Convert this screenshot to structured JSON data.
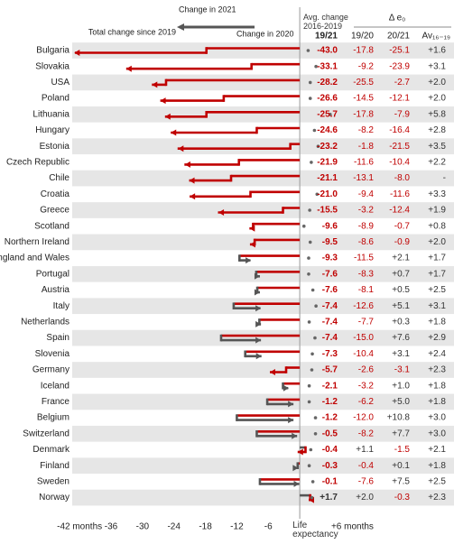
{
  "chart_data": {
    "type": "arrow",
    "legend": {
      "change_2021": "Change in 2021",
      "change_2020": "Change in 2020"
    },
    "columns": {
      "delta": "Δ e₀",
      "total": "19/21",
      "v20": "19/20",
      "v21": "20/21",
      "avg": "Av₁₆₋₁₉"
    },
    "categories": [
      "Bulgaria",
      "Slovakia",
      "USA",
      "Poland",
      "Lithuania",
      "Hungary",
      "Estonia",
      "Czech Republic",
      "Chile",
      "Croatia",
      "Greece",
      "Scotland",
      "Northern Ireland",
      "England and Wales",
      "Portugal",
      "Austria",
      "Italy",
      "Netherlands",
      "Spain",
      "Slovenia",
      "Germany",
      "Iceland",
      "France",
      "Belgium",
      "Switzerland",
      "Denmark",
      "Finland",
      "Sweden",
      "Norway"
    ],
    "series": [
      {
        "name": "Change in 2020",
        "values": [
          -17.8,
          -9.2,
          -25.5,
          -14.5,
          -17.8,
          -8.2,
          -1.8,
          -11.6,
          -13.1,
          -9.4,
          -3.2,
          -8.9,
          -8.6,
          -11.5,
          -8.3,
          -8.1,
          -12.6,
          -7.7,
          -15.0,
          -10.4,
          -2.6,
          -3.2,
          -6.2,
          -12.0,
          -8.2,
          1.1,
          -0.4,
          -7.6,
          2.0
        ],
        "value_labels": [
          "-17.8",
          "-9.2",
          "-25.5",
          "-14.5",
          "-17.8",
          "-8.2",
          "-1.8",
          "-11.6",
          "-13.1",
          "-9.4",
          "-3.2",
          "-8.9",
          "-8.6",
          "-11.5",
          "-8.3",
          "-8.1",
          "-12.6",
          "-7.7",
          "-15.0",
          "-10.4",
          "-2.6",
          "-3.2",
          "-6.2",
          "-12.0",
          "-8.2",
          "+1.1",
          "-0.4",
          "-7.6",
          "+2.0"
        ]
      },
      {
        "name": "Change in 2021",
        "values": [
          -25.1,
          -23.9,
          -2.7,
          -12.1,
          -7.9,
          -16.4,
          -21.5,
          -10.4,
          -8.0,
          -11.6,
          -12.4,
          -0.7,
          -0.9,
          2.1,
          0.7,
          0.5,
          5.1,
          0.3,
          7.6,
          3.1,
          -3.1,
          1.0,
          5.0,
          10.8,
          7.7,
          -1.5,
          0.1,
          7.5,
          -0.3
        ],
        "value_labels": [
          "-25.1",
          "-23.9",
          "-2.7",
          "-12.1",
          "-7.9",
          "-16.4",
          "-21.5",
          "-10.4",
          "-8.0",
          "-11.6",
          "-12.4",
          "-0.7",
          "-0.9",
          "+2.1",
          "+0.7",
          "+0.5",
          "+5.1",
          "+0.3",
          "+7.6",
          "+3.1",
          "-3.1",
          "+1.0",
          "+5.0",
          "+10.8",
          "+7.7",
          "-1.5",
          "+0.1",
          "+7.5",
          "-0.3"
        ]
      }
    ],
    "total": {
      "name": "Total change since 2019",
      "values": [
        -43.0,
        -33.1,
        -28.2,
        -26.6,
        -25.7,
        -24.6,
        -23.2,
        -21.9,
        -21.1,
        -21.0,
        -15.5,
        -9.6,
        -9.5,
        -9.3,
        -7.6,
        -7.6,
        -7.4,
        -7.4,
        -7.4,
        -7.3,
        -5.7,
        -2.1,
        -1.2,
        -1.2,
        -0.5,
        -0.4,
        -0.3,
        -0.1,
        1.7
      ],
      "value_labels": [
        "-43.0",
        "-33.1",
        "-28.2",
        "-26.6",
        "-25.7",
        "-24.6",
        "-23.2",
        "-21.9",
        "-21.1",
        "-21.0",
        "-15.5",
        "-9.6",
        "-9.5",
        "-9.3",
        "-7.6",
        "-7.6",
        "-7.4",
        "-7.4",
        "-7.4",
        "-7.3",
        "-5.7",
        "-2.1",
        "-1.2",
        "-1.2",
        "-0.5",
        "-0.4",
        "-0.3",
        "-0.1",
        "+1.7"
      ]
    },
    "avg": {
      "name": "Avg. change 2016-2019",
      "values": [
        1.6,
        3.1,
        2.0,
        2.0,
        5.8,
        2.8,
        3.5,
        2.2,
        null,
        3.3,
        1.9,
        0.8,
        2.0,
        1.7,
        1.7,
        2.5,
        3.1,
        1.8,
        2.9,
        2.4,
        2.3,
        1.8,
        1.8,
        3.0,
        3.0,
        2.1,
        1.8,
        2.5,
        2.3
      ],
      "value_labels": [
        "+1.6",
        "+3.1",
        "+2.0",
        "+2.0",
        "+5.8",
        "+2.8",
        "+3.5",
        "+2.2",
        "-",
        "+3.3",
        "+1.9",
        "+0.8",
        "+2.0",
        "+1.7",
        "+1.7",
        "+2.5",
        "+3.1",
        "+1.8",
        "+2.9",
        "+2.4",
        "+2.3",
        "+1.8",
        "+1.8",
        "+3.0",
        "+3.0",
        "+2.1",
        "+1.8",
        "+2.5",
        "+2.3"
      ]
    },
    "negative_color": "#c00000",
    "positive_color": "#555555",
    "xlim": [
      -43.4,
      7.9
    ],
    "xticks": [
      {
        "value": -42,
        "label": "-42 months"
      },
      -36,
      -30,
      -24,
      -18,
      -12,
      -6,
      {
        "value": 0,
        "label": "Life expectancy"
      },
      {
        "value": 6,
        "label": "+6 months"
      }
    ]
  }
}
